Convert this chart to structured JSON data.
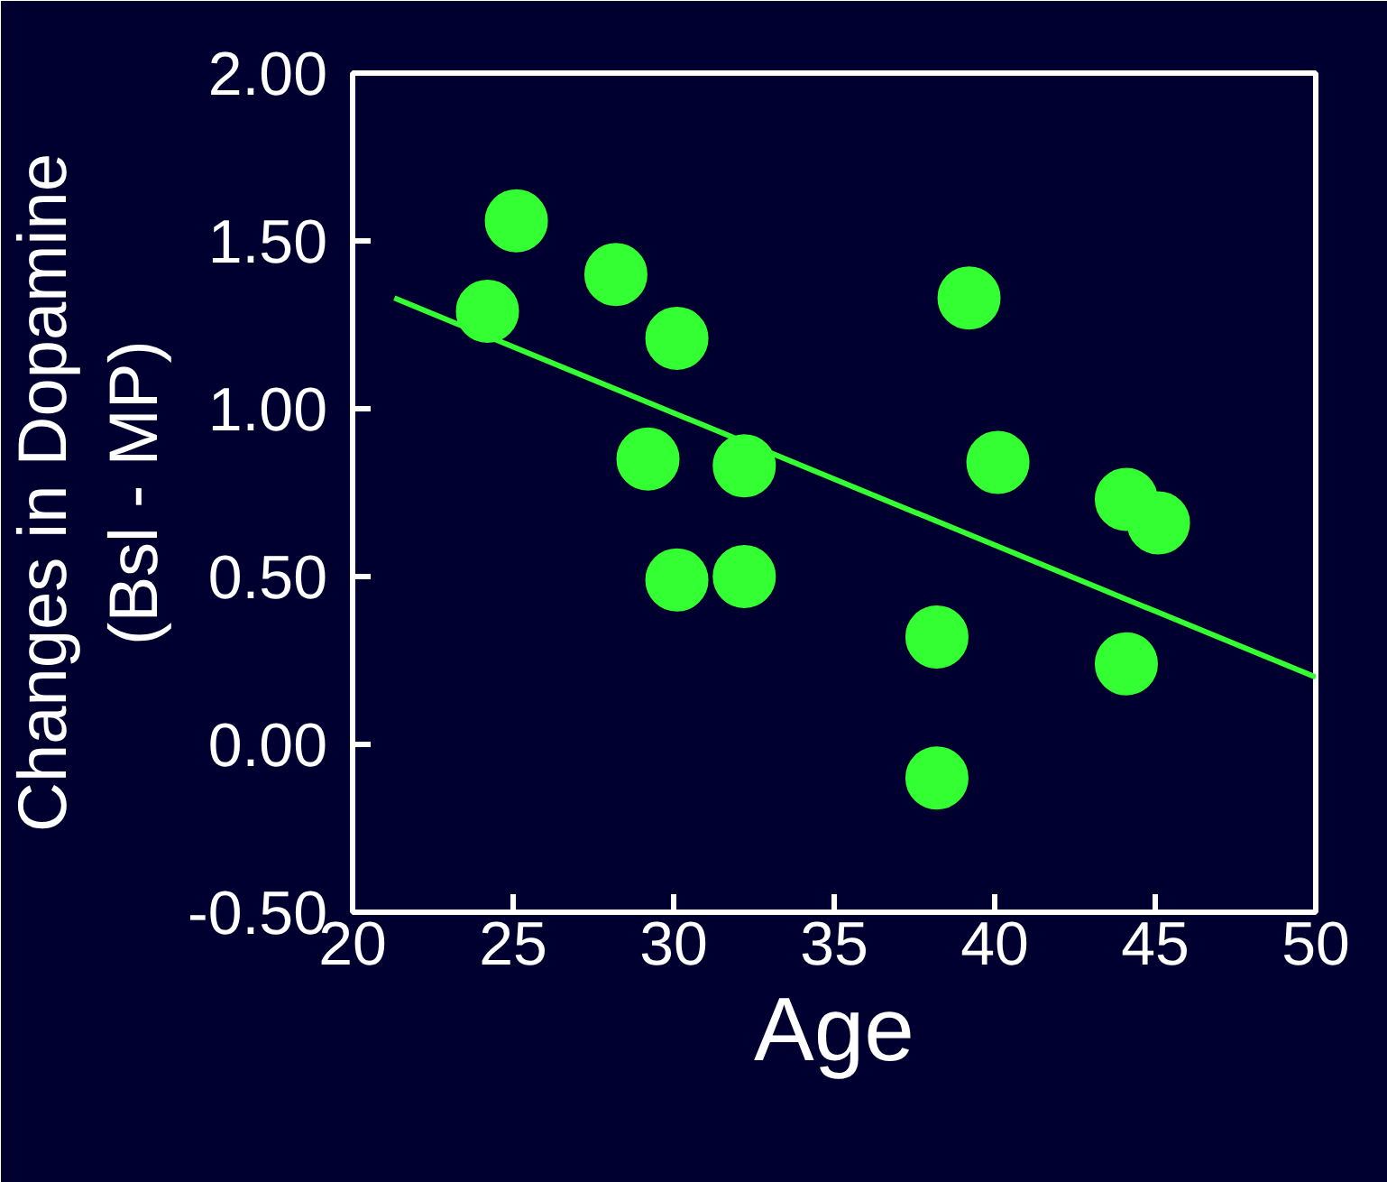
{
  "chart_data": {
    "type": "scatter",
    "xlabel": "Age",
    "ylabel": "Changes in Dopamine\n(Bsl - MP)",
    "xlim": [
      20,
      50
    ],
    "xticks": [
      20,
      25,
      30,
      35,
      40,
      45,
      50
    ],
    "ylim": [
      -0.5,
      2.0
    ],
    "yticks": [
      {
        "value": -0.5,
        "label": "-0.50"
      },
      {
        "value": 0,
        "label": "0.00"
      },
      {
        "value": 0.5,
        "label": "0.50"
      },
      {
        "value": 1.0,
        "label": "1.00"
      },
      {
        "value": 1.5,
        "label": "1.50"
      },
      {
        "value": 2.0,
        "label": "2.00"
      }
    ],
    "grid": false,
    "series": [
      {
        "marker": "circle",
        "color": "#33ff33",
        "x": [
          24.2,
          25.1,
          28.2,
          30.1,
          29.2,
          30.1,
          32.2,
          32.2,
          39.2,
          40.1,
          38.2,
          38.2,
          44.1,
          45.1,
          44.1
        ],
        "values": [
          1.29,
          1.56,
          1.4,
          1.21,
          0.85,
          0.49,
          0.83,
          0.5,
          1.33,
          0.84,
          0.32,
          -0.1,
          0.73,
          0.66,
          0.24
        ]
      },
      {
        "type": "line",
        "color": "#33ff33",
        "x": [
          21.3,
          50
        ],
        "values": [
          1.33,
          0.2
        ]
      }
    ]
  }
}
